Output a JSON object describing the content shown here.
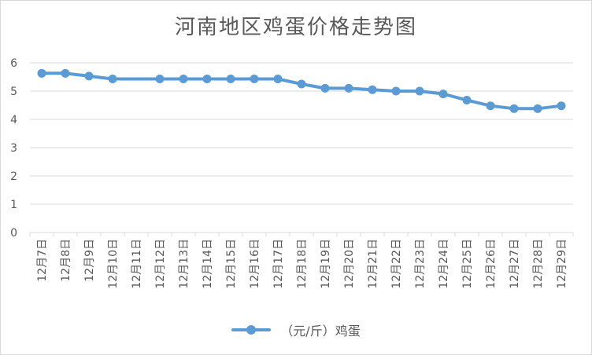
{
  "chart_data": {
    "type": "line",
    "title": "河南地区鸡蛋价格走势图",
    "categories": [
      "12月7日",
      "12月8日",
      "12月9日",
      "12月10日",
      "12月11日",
      "12月12日",
      "12月13日",
      "12月14日",
      "12月15日",
      "12月16日",
      "12月17日",
      "12月18日",
      "12月19日",
      "12月20日",
      "12月21日",
      "12月22日",
      "12月23日",
      "12月24日",
      "12月25日",
      "12月26日",
      "12月27日",
      "12月28日",
      "12月29日"
    ],
    "series": [
      {
        "name": "（元/斤）鸡蛋",
        "color": "#5b9bd5",
        "values": [
          5.63,
          5.63,
          5.53,
          5.43,
          null,
          5.43,
          5.43,
          5.43,
          5.43,
          5.43,
          5.43,
          5.25,
          5.1,
          5.1,
          5.05,
          5.0,
          5.0,
          4.9,
          4.68,
          4.48,
          4.38,
          4.38,
          4.48
        ]
      }
    ],
    "ylim": [
      0,
      6
    ],
    "yticks": [
      0,
      1,
      2,
      3,
      4,
      5,
      6
    ],
    "grid": true,
    "legend": "bottom"
  }
}
